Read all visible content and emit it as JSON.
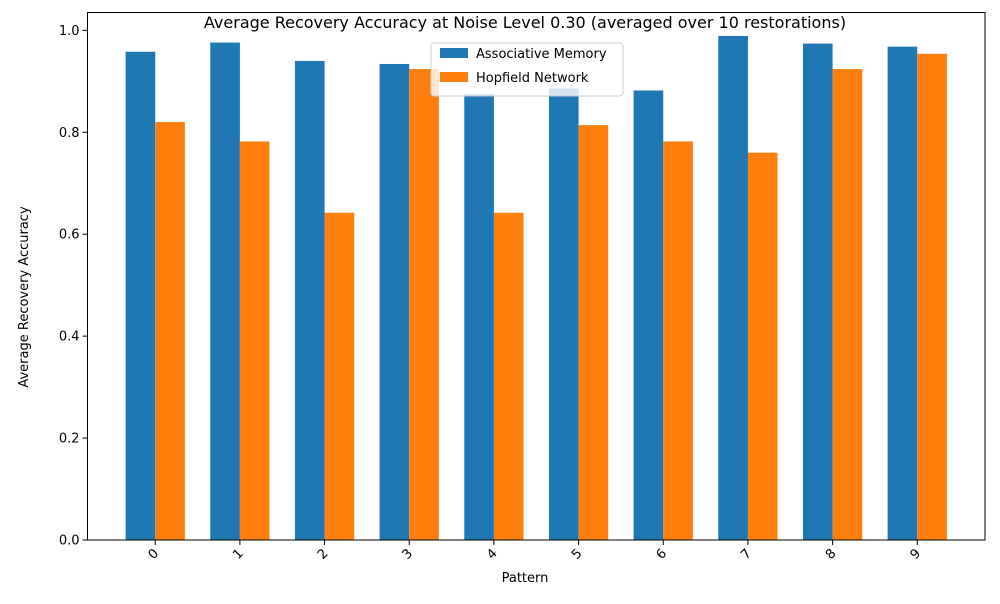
{
  "chart_data": {
    "type": "bar",
    "title": "Average Recovery Accuracy at Noise Level 0.30 (averaged over 10 restorations)",
    "xlabel": "Pattern",
    "ylabel": "Average Recovery Accuracy",
    "categories": [
      "0",
      "1",
      "2",
      "3",
      "4",
      "5",
      "6",
      "7",
      "8",
      "9"
    ],
    "ylim": [
      0,
      1.035
    ],
    "yticks": [
      0.0,
      0.2,
      0.4,
      0.6,
      0.8,
      1.0
    ],
    "ytick_labels": [
      "0.0",
      "0.2",
      "0.4",
      "0.6",
      "0.8",
      "1.0"
    ],
    "grid": false,
    "legend_position": "top-center",
    "series": [
      {
        "name": "Associative Memory",
        "color": "#1f77b4",
        "values": [
          0.958,
          0.976,
          0.94,
          0.934,
          0.875,
          0.886,
          0.882,
          0.989,
          0.974,
          0.968
        ]
      },
      {
        "name": "Hopfield Network",
        "color": "#ff7f0e",
        "values": [
          0.82,
          0.782,
          0.642,
          0.924,
          0.642,
          0.814,
          0.782,
          0.76,
          0.924,
          0.954
        ]
      }
    ]
  }
}
